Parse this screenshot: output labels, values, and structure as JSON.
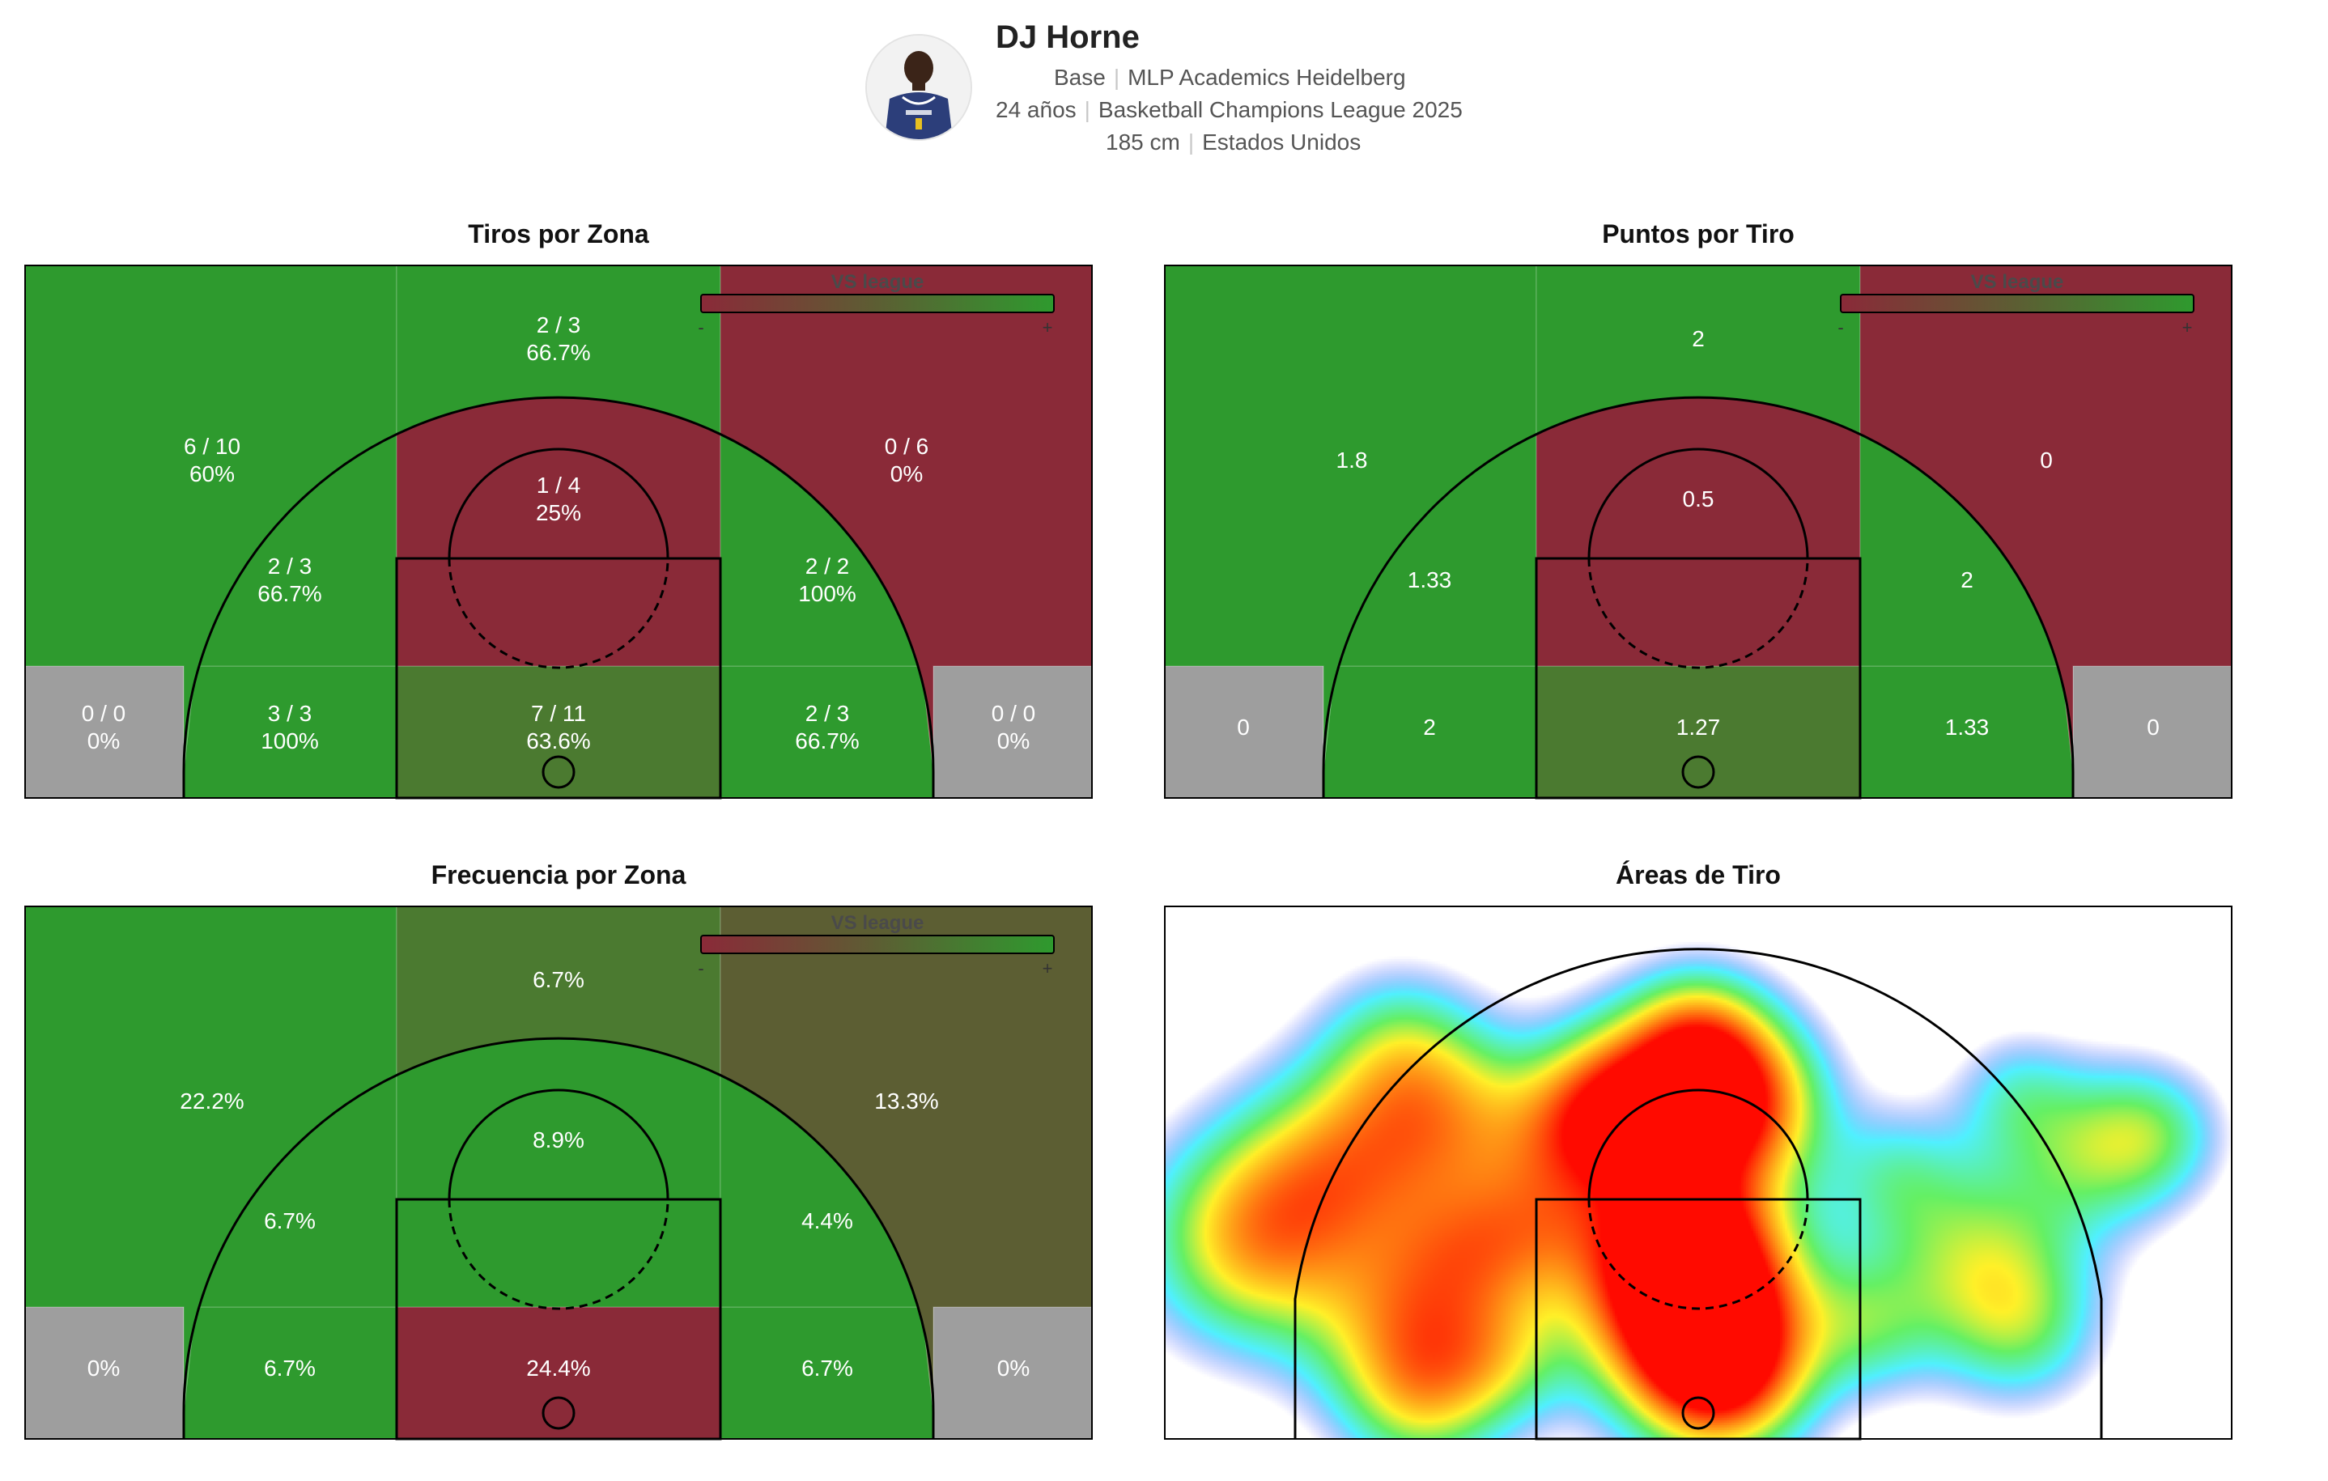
{
  "player": {
    "name": "DJ Horne",
    "position": "Base",
    "team": "MLP Academics Heidelberg",
    "age": "24 años",
    "competition": "Basketball Champions League 2025",
    "height": "185 cm",
    "country": "Estados Unidos"
  },
  "colors": {
    "above": "#2e9a2e",
    "below": "#8a2a38",
    "neutral": "#9e9e9e",
    "near_avg_good": "#4b7a30",
    "near_avg_mixed": "#5c5e33"
  },
  "legend": {
    "label": "VS league",
    "minus": "-",
    "plus": "+"
  },
  "chart_data": [
    {
      "type": "heatmap",
      "title": "Tiros por Zona",
      "zones": [
        {
          "zone": "corner-left",
          "lines": [
            "0 / 0",
            "0%"
          ],
          "made": 0,
          "attempts": 0,
          "pct": 0,
          "status": "neutral"
        },
        {
          "zone": "baseline-left",
          "lines": [
            "3 / 3",
            "100%"
          ],
          "made": 3,
          "attempts": 3,
          "pct": 100,
          "status": "above"
        },
        {
          "zone": "paint",
          "lines": [
            "7 / 11",
            "63.6%"
          ],
          "made": 7,
          "attempts": 11,
          "pct": 63.6,
          "status": "near_avg_good"
        },
        {
          "zone": "baseline-right",
          "lines": [
            "2 / 3",
            "66.7%"
          ],
          "made": 2,
          "attempts": 3,
          "pct": 66.7,
          "status": "above"
        },
        {
          "zone": "corner-right",
          "lines": [
            "0 / 0",
            "0%"
          ],
          "made": 0,
          "attempts": 0,
          "pct": 0,
          "status": "neutral"
        },
        {
          "zone": "mid-left",
          "lines": [
            "2 / 3",
            "66.7%"
          ],
          "made": 2,
          "attempts": 3,
          "pct": 66.7,
          "status": "above"
        },
        {
          "zone": "mid-center",
          "lines": [
            "1 / 4",
            "25%"
          ],
          "made": 1,
          "attempts": 4,
          "pct": 25,
          "status": "below"
        },
        {
          "zone": "mid-right",
          "lines": [
            "2 / 2",
            "100%"
          ],
          "made": 2,
          "attempts": 2,
          "pct": 100,
          "status": "above"
        },
        {
          "zone": "three-left",
          "lines": [
            "6 / 10",
            "60%"
          ],
          "made": 6,
          "attempts": 10,
          "pct": 60,
          "status": "above"
        },
        {
          "zone": "three-center",
          "lines": [
            "2 / 3",
            "66.7%"
          ],
          "made": 2,
          "attempts": 3,
          "pct": 66.7,
          "status": "above"
        },
        {
          "zone": "three-right",
          "lines": [
            "0 / 6",
            "0%"
          ],
          "made": 0,
          "attempts": 6,
          "pct": 0,
          "status": "below"
        }
      ]
    },
    {
      "type": "heatmap",
      "title": "Puntos por Tiro",
      "zones": [
        {
          "zone": "corner-left",
          "lines": [
            "0"
          ],
          "value": 0,
          "status": "neutral"
        },
        {
          "zone": "baseline-left",
          "lines": [
            "2"
          ],
          "value": 2,
          "status": "above"
        },
        {
          "zone": "paint",
          "lines": [
            "1.27"
          ],
          "value": 1.27,
          "status": "near_avg_good"
        },
        {
          "zone": "baseline-right",
          "lines": [
            "1.33"
          ],
          "value": 1.33,
          "status": "above"
        },
        {
          "zone": "corner-right",
          "lines": [
            "0"
          ],
          "value": 0,
          "status": "neutral"
        },
        {
          "zone": "mid-left",
          "lines": [
            "1.33"
          ],
          "value": 1.33,
          "status": "above"
        },
        {
          "zone": "mid-center",
          "lines": [
            "0.5"
          ],
          "value": 0.5,
          "status": "below"
        },
        {
          "zone": "mid-right",
          "lines": [
            "2"
          ],
          "value": 2,
          "status": "above"
        },
        {
          "zone": "three-left",
          "lines": [
            "1.8"
          ],
          "value": 1.8,
          "status": "above"
        },
        {
          "zone": "three-center",
          "lines": [
            "2"
          ],
          "value": 2,
          "status": "above"
        },
        {
          "zone": "three-right",
          "lines": [
            "0"
          ],
          "value": 0,
          "status": "below"
        }
      ]
    },
    {
      "type": "heatmap",
      "title": "Frecuencia por Zona",
      "zones": [
        {
          "zone": "corner-left",
          "lines": [
            "0%"
          ],
          "value": 0,
          "status": "neutral"
        },
        {
          "zone": "baseline-left",
          "lines": [
            "6.7%"
          ],
          "value": 6.7,
          "status": "above"
        },
        {
          "zone": "paint",
          "lines": [
            "24.4%"
          ],
          "value": 24.4,
          "status": "below"
        },
        {
          "zone": "baseline-right",
          "lines": [
            "6.7%"
          ],
          "value": 6.7,
          "status": "above"
        },
        {
          "zone": "corner-right",
          "lines": [
            "0%"
          ],
          "value": 0,
          "status": "neutral"
        },
        {
          "zone": "mid-left",
          "lines": [
            "6.7%"
          ],
          "value": 6.7,
          "status": "above"
        },
        {
          "zone": "mid-center",
          "lines": [
            "8.9%"
          ],
          "value": 8.9,
          "status": "above"
        },
        {
          "zone": "mid-right",
          "lines": [
            "4.4%"
          ],
          "value": 4.4,
          "status": "above"
        },
        {
          "zone": "three-left",
          "lines": [
            "22.2%"
          ],
          "value": 22.2,
          "status": "above"
        },
        {
          "zone": "three-center",
          "lines": [
            "6.7%"
          ],
          "value": 6.7,
          "status": "near_avg_good"
        },
        {
          "zone": "three-right",
          "lines": [
            "13.3%"
          ],
          "value": 13.3,
          "status": "near_avg_mixed"
        }
      ]
    },
    {
      "type": "heatmap",
      "title": "Áreas de Tiro",
      "density_hotspots": [
        {
          "area": "paint",
          "intensity": 1.0
        },
        {
          "area": "top-of-key",
          "intensity": 0.85
        },
        {
          "area": "left-wing-three",
          "intensity": 0.8
        },
        {
          "area": "left-baseline-mid",
          "intensity": 0.7
        },
        {
          "area": "left-elbow",
          "intensity": 0.6
        },
        {
          "area": "right-wing",
          "intensity": 0.55
        },
        {
          "area": "right-wing-three",
          "intensity": 0.5
        }
      ]
    }
  ]
}
